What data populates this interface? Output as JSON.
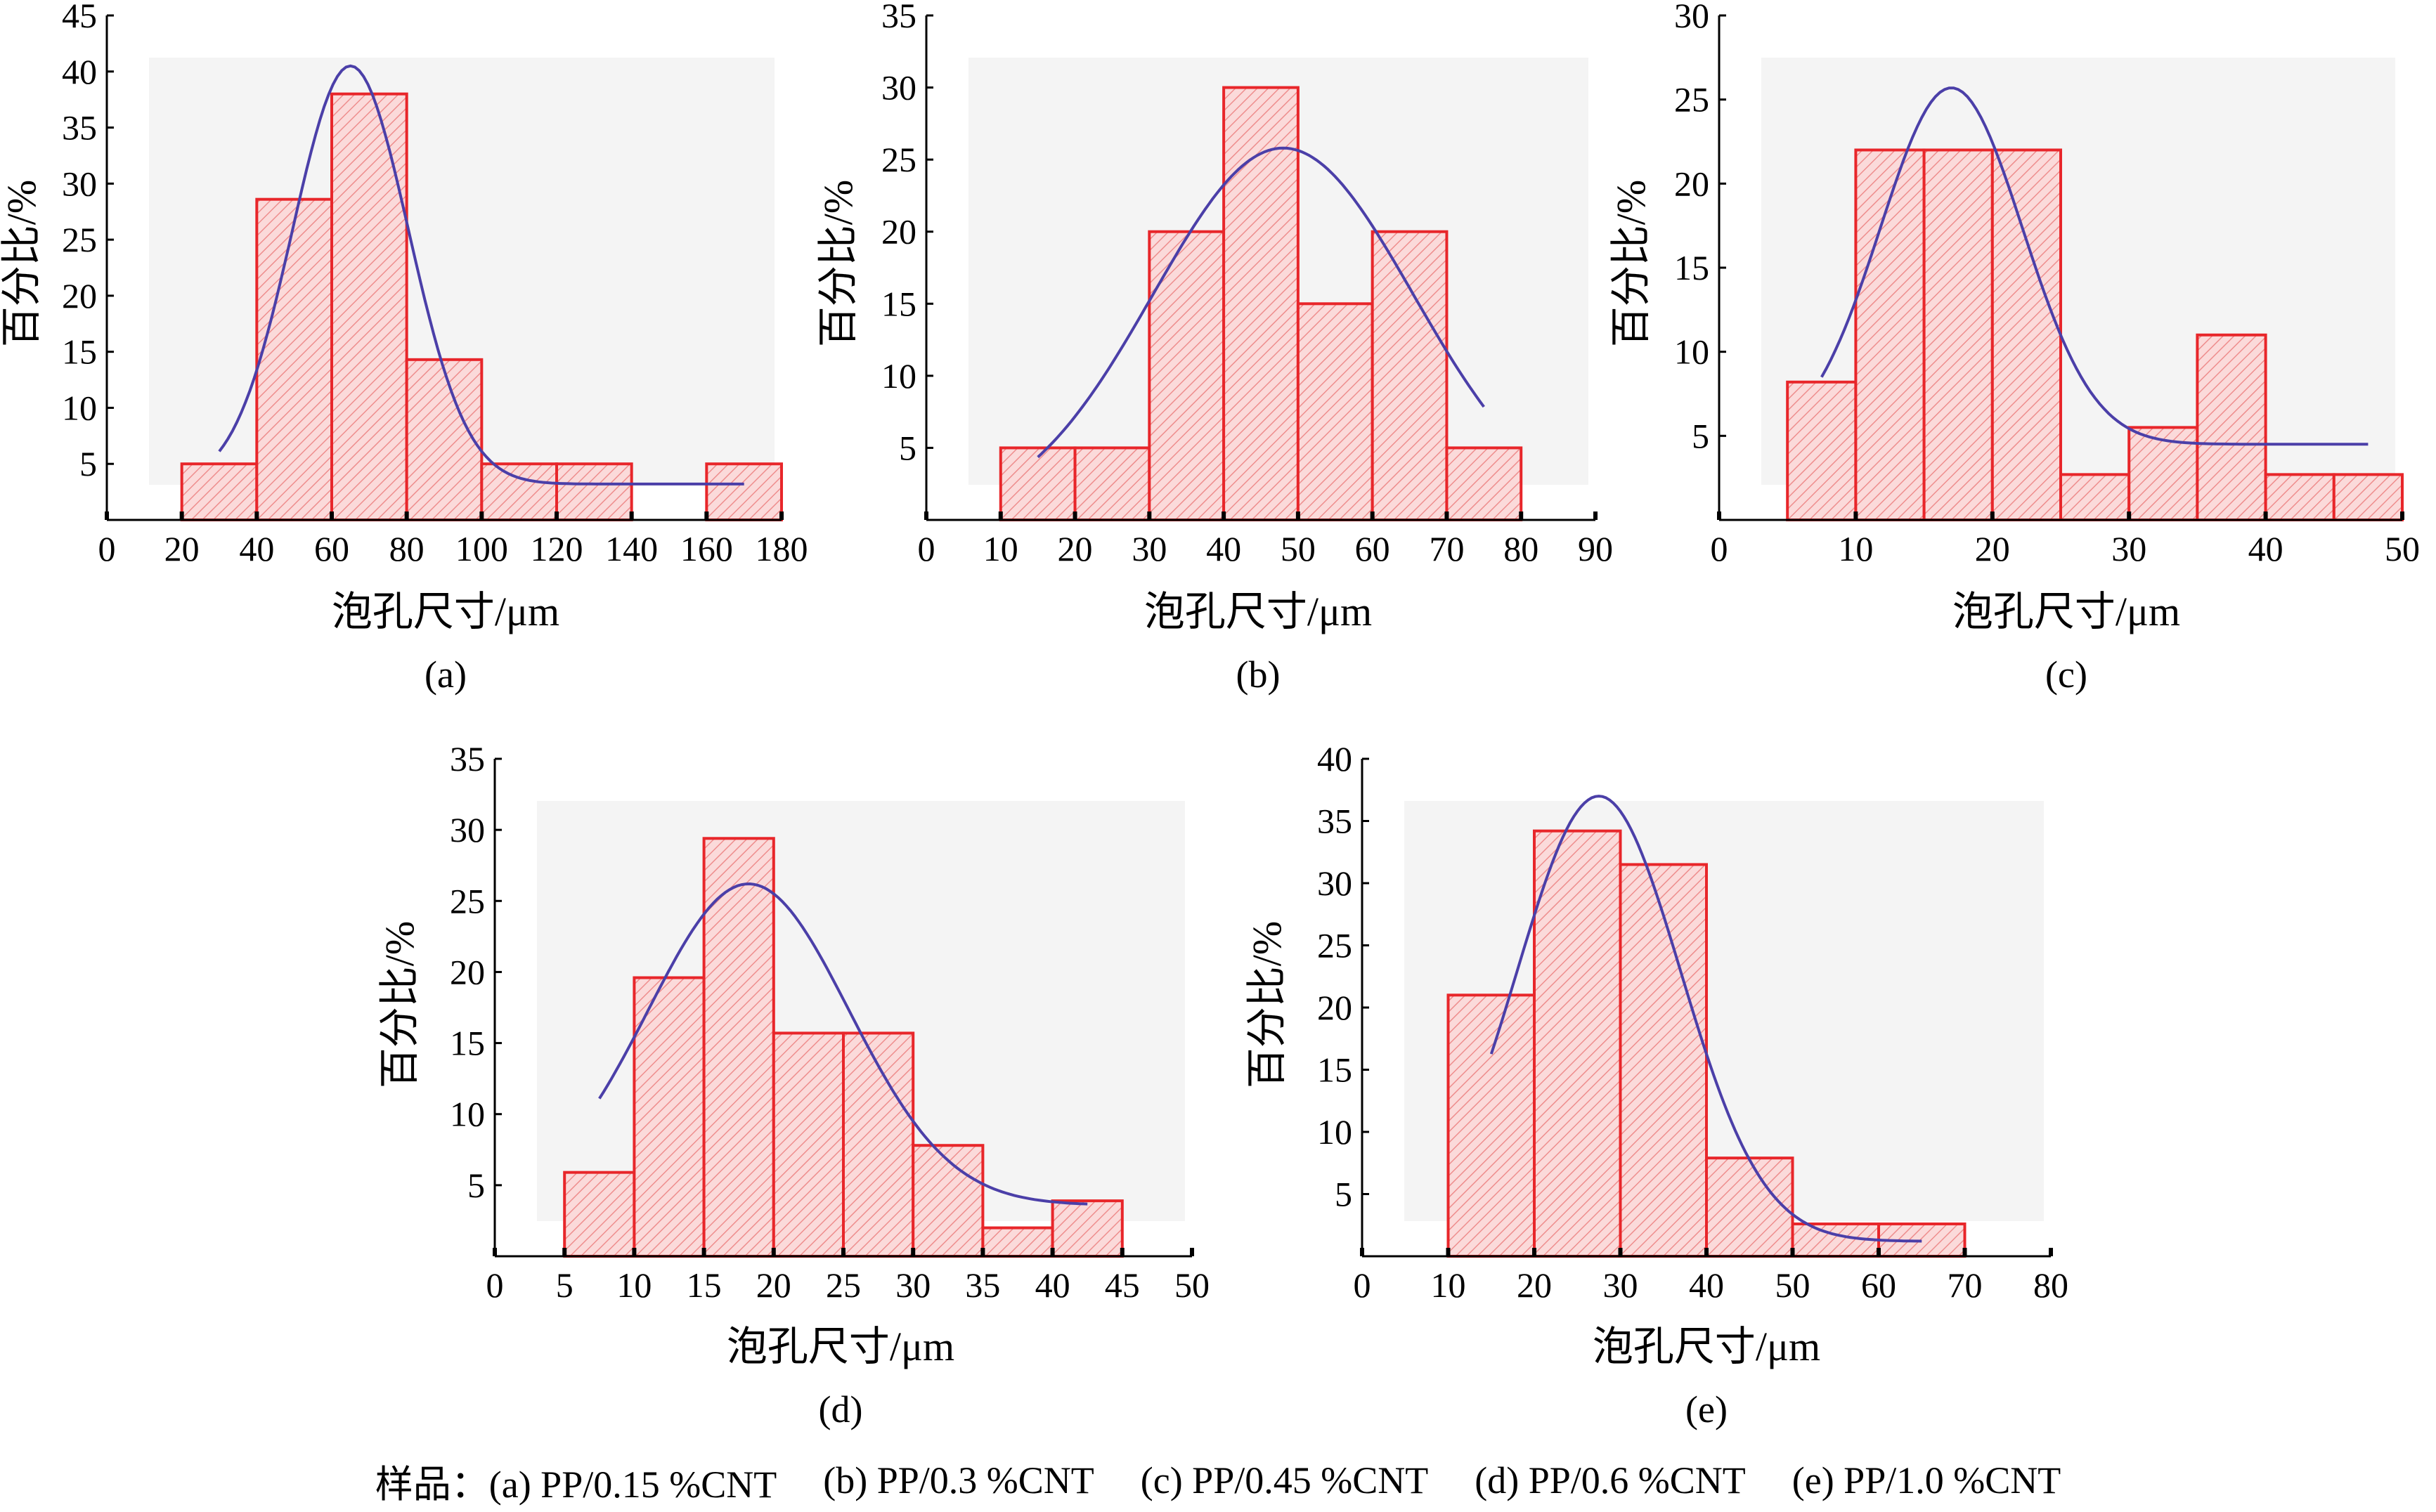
{
  "colors": {
    "bar_stroke": "#e8262a",
    "bar_fill": "#fbdada",
    "hatch": "#ee8d8d",
    "curve": "#4b3fa8",
    "plot_bg": "#f4f4f4",
    "axis": "#000000"
  },
  "chart_data": [
    {
      "type": "bar",
      "panel_label": "(a)",
      "xlabel": "泡孔尺寸/μm",
      "ylabel": "百分比/%",
      "xlim": [
        0,
        180
      ],
      "ylim": [
        0,
        45
      ],
      "x_ticks": [
        0,
        20,
        40,
        60,
        80,
        100,
        120,
        140,
        160,
        180
      ],
      "y_ticks": [
        5,
        10,
        15,
        20,
        25,
        30,
        35,
        40,
        45
      ],
      "bins": [
        {
          "x0": 20,
          "x1": 40,
          "value": 5
        },
        {
          "x0": 40,
          "x1": 60,
          "value": 28.6
        },
        {
          "x0": 60,
          "x1": 80,
          "value": 38
        },
        {
          "x0": 80,
          "x1": 100,
          "value": 14.3
        },
        {
          "x0": 100,
          "x1": 120,
          "value": 5
        },
        {
          "x0": 120,
          "x1": 140,
          "value": 5
        },
        {
          "x0": 160,
          "x1": 180,
          "value": 5
        }
      ],
      "fit_curve": {
        "x_start": 30,
        "x_end": 170,
        "base": 3.2,
        "amp": 37.3,
        "mean": 65,
        "sd": 15.5
      }
    },
    {
      "type": "bar",
      "panel_label": "(b)",
      "xlabel": "泡孔尺寸/μm",
      "ylabel": "百分比/%",
      "xlim": [
        0,
        90
      ],
      "ylim": [
        0,
        35
      ],
      "x_ticks": [
        0,
        10,
        20,
        30,
        40,
        50,
        60,
        70,
        80,
        90
      ],
      "y_ticks": [
        5,
        10,
        15,
        20,
        25,
        30,
        35
      ],
      "bins": [
        {
          "x0": 10,
          "x1": 20,
          "value": 5
        },
        {
          "x0": 20,
          "x1": 30,
          "value": 5
        },
        {
          "x0": 30,
          "x1": 40,
          "value": 20
        },
        {
          "x0": 40,
          "x1": 50,
          "value": 30
        },
        {
          "x0": 50,
          "x1": 60,
          "value": 15
        },
        {
          "x0": 60,
          "x1": 70,
          "value": 20
        },
        {
          "x0": 70,
          "x1": 80,
          "value": 5
        }
      ],
      "fit_curve": {
        "x_start": 15,
        "x_end": 75,
        "base": 0,
        "amp": 25.8,
        "mean": 48,
        "sd": 17.5
      }
    },
    {
      "type": "bar",
      "panel_label": "(c)",
      "xlabel": "泡孔尺寸/μm",
      "ylabel": "百分比/%",
      "xlim": [
        0,
        50
      ],
      "ylim": [
        0,
        30
      ],
      "x_ticks": [
        0,
        10,
        20,
        30,
        40,
        50
      ],
      "y_ticks": [
        5,
        10,
        15,
        20,
        25,
        30
      ],
      "bins": [
        {
          "x0": 5,
          "x1": 10,
          "value": 8.2
        },
        {
          "x0": 10,
          "x1": 15,
          "value": 22
        },
        {
          "x0": 15,
          "x1": 20,
          "value": 22
        },
        {
          "x0": 20,
          "x1": 25,
          "value": 22
        },
        {
          "x0": 25,
          "x1": 30,
          "value": 2.7
        },
        {
          "x0": 30,
          "x1": 35,
          "value": 5.5
        },
        {
          "x0": 35,
          "x1": 40,
          "value": 11
        },
        {
          "x0": 40,
          "x1": 45,
          "value": 2.7
        },
        {
          "x0": 45,
          "x1": 50,
          "value": 2.7
        }
      ],
      "fit_curve": {
        "x_start": 7.5,
        "x_end": 47.5,
        "base": 4.5,
        "amp": 21.2,
        "mean": 17,
        "sd": 5.2
      }
    },
    {
      "type": "bar",
      "panel_label": "(d)",
      "xlabel": "泡孔尺寸/μm",
      "ylabel": "百分比/%",
      "xlim": [
        0,
        50
      ],
      "ylim": [
        0,
        35
      ],
      "x_ticks": [
        0,
        5,
        10,
        15,
        20,
        25,
        30,
        35,
        40,
        45,
        50
      ],
      "y_ticks": [
        5,
        10,
        15,
        20,
        25,
        30,
        35
      ],
      "bins": [
        {
          "x0": 5,
          "x1": 10,
          "value": 5.9
        },
        {
          "x0": 10,
          "x1": 15,
          "value": 19.6
        },
        {
          "x0": 15,
          "x1": 20,
          "value": 29.4
        },
        {
          "x0": 20,
          "x1": 25,
          "value": 15.7
        },
        {
          "x0": 25,
          "x1": 30,
          "value": 15.7
        },
        {
          "x0": 30,
          "x1": 35,
          "value": 7.8
        },
        {
          "x0": 35,
          "x1": 40,
          "value": 2
        },
        {
          "x0": 40,
          "x1": 45,
          "value": 3.9
        }
      ],
      "fit_curve": {
        "x_start": 7.5,
        "x_end": 42.5,
        "base": 3.6,
        "amp": 22.6,
        "mean": 18.2,
        "sd": 7.2
      }
    },
    {
      "type": "bar",
      "panel_label": "(e)",
      "xlabel": "泡孔尺寸/μm",
      "ylabel": "百分比/%",
      "xlim": [
        0,
        80
      ],
      "ylim": [
        0,
        40
      ],
      "x_ticks": [
        0,
        10,
        20,
        30,
        40,
        50,
        60,
        70,
        80
      ],
      "y_ticks": [
        5,
        10,
        15,
        20,
        25,
        30,
        35,
        40
      ],
      "bins": [
        {
          "x0": 10,
          "x1": 20,
          "value": 21
        },
        {
          "x0": 20,
          "x1": 30,
          "value": 34.2
        },
        {
          "x0": 30,
          "x1": 40,
          "value": 31.5
        },
        {
          "x0": 40,
          "x1": 50,
          "value": 7.9
        },
        {
          "x0": 50,
          "x1": 60,
          "value": 2.6
        },
        {
          "x0": 60,
          "x1": 70,
          "value": 2.6
        }
      ],
      "fit_curve": {
        "x_start": 15,
        "x_end": 65,
        "base": 1.2,
        "amp": 35.8,
        "mean": 27.5,
        "sd": 9.5
      }
    }
  ],
  "caption": {
    "prefix": "样品：",
    "items": [
      "(a) PP/0.15 %CNT",
      "(b) PP/0.3 %CNT",
      "(c) PP/0.45 %CNT",
      "(d) PP/0.6 %CNT",
      "(e) PP/1.0 %CNT"
    ]
  }
}
